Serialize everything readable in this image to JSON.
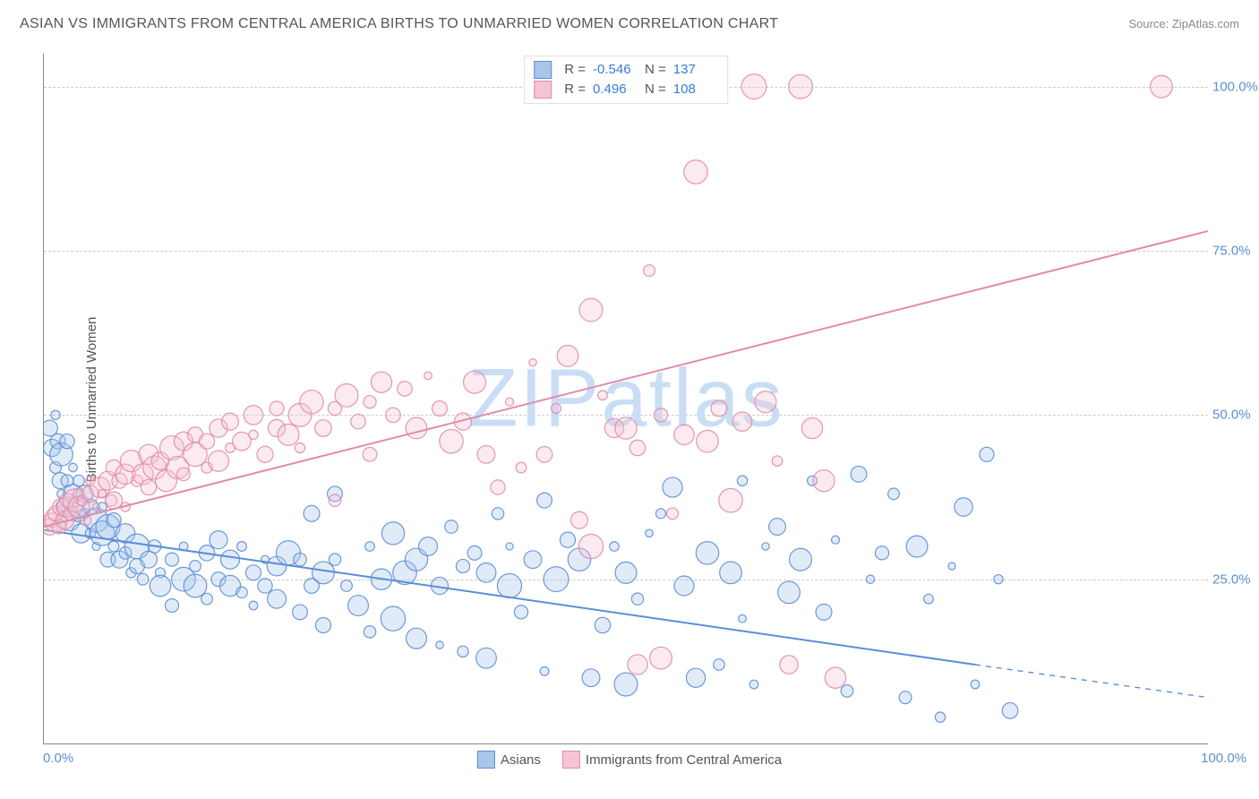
{
  "title": "ASIAN VS IMMIGRANTS FROM CENTRAL AMERICA BIRTHS TO UNMARRIED WOMEN CORRELATION CHART",
  "source": "Source: ZipAtlas.com",
  "watermark": "ZIPatlas",
  "watermark_color": "#c9def5",
  "y_axis_label": "Births to Unmarried Women",
  "chart": {
    "type": "scatter",
    "background_color": "#ffffff",
    "grid_color": "#cccccc",
    "axis_color": "#888888",
    "xlim": [
      0,
      100
    ],
    "ylim": [
      0,
      105
    ],
    "x_ticks": [
      {
        "value": 0,
        "label": "0.0%"
      },
      {
        "value": 100,
        "label": "100.0%"
      }
    ],
    "y_ticks": [
      {
        "value": 25,
        "label": "25.0%"
      },
      {
        "value": 50,
        "label": "50.0%"
      },
      {
        "value": 75,
        "label": "75.0%"
      },
      {
        "value": 100,
        "label": "100.0%"
      }
    ],
    "tick_color": "#5b8fd6",
    "marker_base_radius": 9,
    "marker_radius_variation": 5,
    "marker_fill_opacity": 0.35,
    "marker_stroke_opacity": 0.9,
    "marker_stroke_width": 1.2,
    "trend_line_width": 2,
    "series": [
      {
        "name": "Asians",
        "color": "#5b8fd6",
        "fill": "#a8c6eb",
        "R": "-0.546",
        "N": "137",
        "trend": {
          "x1": 0,
          "y1": 32.5,
          "x2": 80,
          "y2": 12,
          "extend_dashed_to_x": 100,
          "extend_dashed_to_y": 7
        },
        "points": [
          [
            0.5,
            48
          ],
          [
            0.7,
            45
          ],
          [
            1,
            50
          ],
          [
            1,
            42
          ],
          [
            1.2,
            46
          ],
          [
            1.4,
            40
          ],
          [
            1.5,
            38
          ],
          [
            1.5,
            44
          ],
          [
            1.8,
            36
          ],
          [
            2,
            46
          ],
          [
            2,
            40
          ],
          [
            2.2,
            34
          ],
          [
            2.5,
            38
          ],
          [
            2.5,
            42
          ],
          [
            3,
            35
          ],
          [
            3,
            40
          ],
          [
            3.2,
            32
          ],
          [
            3.5,
            35
          ],
          [
            3.5,
            38
          ],
          [
            4,
            36
          ],
          [
            4,
            32
          ],
          [
            4.5,
            30
          ],
          [
            4.5,
            34
          ],
          [
            5,
            32
          ],
          [
            5,
            36
          ],
          [
            5.5,
            28
          ],
          [
            5.5,
            33
          ],
          [
            6,
            30
          ],
          [
            6,
            34
          ],
          [
            6.5,
            28
          ],
          [
            7,
            32
          ],
          [
            7,
            29
          ],
          [
            7.5,
            26
          ],
          [
            8,
            30
          ],
          [
            8,
            27
          ],
          [
            8.5,
            25
          ],
          [
            9,
            28
          ],
          [
            9.5,
            30
          ],
          [
            10,
            26
          ],
          [
            10,
            24
          ],
          [
            11,
            28
          ],
          [
            11,
            21
          ],
          [
            12,
            30
          ],
          [
            12,
            25
          ],
          [
            13,
            27
          ],
          [
            13,
            24
          ],
          [
            14,
            29
          ],
          [
            14,
            22
          ],
          [
            15,
            31
          ],
          [
            15,
            25
          ],
          [
            16,
            24
          ],
          [
            16,
            28
          ],
          [
            17,
            30
          ],
          [
            17,
            23
          ],
          [
            18,
            26
          ],
          [
            18,
            21
          ],
          [
            19,
            28
          ],
          [
            19,
            24
          ],
          [
            20,
            27
          ],
          [
            20,
            22
          ],
          [
            21,
            29
          ],
          [
            22,
            28
          ],
          [
            22,
            20
          ],
          [
            23,
            35
          ],
          [
            23,
            24
          ],
          [
            24,
            26
          ],
          [
            24,
            18
          ],
          [
            25,
            38
          ],
          [
            25,
            28
          ],
          [
            26,
            24
          ],
          [
            27,
            21
          ],
          [
            28,
            30
          ],
          [
            28,
            17
          ],
          [
            29,
            25
          ],
          [
            30,
            32
          ],
          [
            30,
            19
          ],
          [
            31,
            26
          ],
          [
            32,
            28
          ],
          [
            32,
            16
          ],
          [
            33,
            30
          ],
          [
            34,
            24
          ],
          [
            34,
            15
          ],
          [
            35,
            33
          ],
          [
            36,
            27
          ],
          [
            36,
            14
          ],
          [
            37,
            29
          ],
          [
            38,
            26
          ],
          [
            38,
            13
          ],
          [
            39,
            35
          ],
          [
            40,
            24
          ],
          [
            40,
            30
          ],
          [
            41,
            20
          ],
          [
            42,
            28
          ],
          [
            43,
            37
          ],
          [
            43,
            11
          ],
          [
            44,
            25
          ],
          [
            45,
            31
          ],
          [
            46,
            28
          ],
          [
            47,
            10
          ],
          [
            48,
            18
          ],
          [
            49,
            30
          ],
          [
            50,
            26
          ],
          [
            50,
            9
          ],
          [
            51,
            22
          ],
          [
            52,
            32
          ],
          [
            53,
            35
          ],
          [
            54,
            39
          ],
          [
            55,
            24
          ],
          [
            56,
            10
          ],
          [
            57,
            29
          ],
          [
            58,
            12
          ],
          [
            59,
            26
          ],
          [
            60,
            40
          ],
          [
            60,
            19
          ],
          [
            61,
            9
          ],
          [
            62,
            30
          ],
          [
            63,
            33
          ],
          [
            64,
            23
          ],
          [
            65,
            28
          ],
          [
            66,
            40
          ],
          [
            67,
            20
          ],
          [
            68,
            31
          ],
          [
            69,
            8
          ],
          [
            70,
            41
          ],
          [
            71,
            25
          ],
          [
            72,
            29
          ],
          [
            73,
            38
          ],
          [
            74,
            7
          ],
          [
            75,
            30
          ],
          [
            76,
            22
          ],
          [
            77,
            4
          ],
          [
            78,
            27
          ],
          [
            79,
            36
          ],
          [
            80,
            9
          ],
          [
            81,
            44
          ],
          [
            82,
            25
          ],
          [
            83,
            5
          ]
        ]
      },
      {
        "name": "Immigrants from Central America",
        "color": "#e08ca8",
        "fill": "#f4c4d4",
        "R": "0.496",
        "N": "108",
        "trend": {
          "x1": 0,
          "y1": 33,
          "x2": 100,
          "y2": 78
        },
        "points": [
          [
            0.5,
            33
          ],
          [
            0.7,
            34
          ],
          [
            1,
            34
          ],
          [
            1,
            35
          ],
          [
            1.3,
            33
          ],
          [
            1.5,
            36
          ],
          [
            1.8,
            34
          ],
          [
            2,
            36
          ],
          [
            2,
            37
          ],
          [
            2.3,
            35
          ],
          [
            2.6,
            37
          ],
          [
            3,
            36
          ],
          [
            3,
            38
          ],
          [
            3.3,
            37
          ],
          [
            3.6,
            34
          ],
          [
            4,
            38
          ],
          [
            4,
            40
          ],
          [
            4.5,
            36
          ],
          [
            4.8,
            39
          ],
          [
            5,
            38
          ],
          [
            5.5,
            40
          ],
          [
            5.8,
            37
          ],
          [
            6,
            42
          ],
          [
            6,
            37
          ],
          [
            6.5,
            40
          ],
          [
            7,
            41
          ],
          [
            7,
            36
          ],
          [
            7.5,
            43
          ],
          [
            8,
            40
          ],
          [
            8.5,
            41
          ],
          [
            9,
            44
          ],
          [
            9,
            39
          ],
          [
            9.5,
            42
          ],
          [
            10,
            43
          ],
          [
            10.5,
            40
          ],
          [
            11,
            45
          ],
          [
            11.5,
            42
          ],
          [
            12,
            46
          ],
          [
            12,
            41
          ],
          [
            13,
            44
          ],
          [
            13,
            47
          ],
          [
            14,
            46
          ],
          [
            14,
            42
          ],
          [
            15,
            48
          ],
          [
            15,
            43
          ],
          [
            16,
            45
          ],
          [
            16,
            49
          ],
          [
            17,
            46
          ],
          [
            18,
            47
          ],
          [
            18,
            50
          ],
          [
            19,
            44
          ],
          [
            20,
            48
          ],
          [
            20,
            51
          ],
          [
            21,
            47
          ],
          [
            22,
            50
          ],
          [
            22,
            45
          ],
          [
            23,
            52
          ],
          [
            24,
            48
          ],
          [
            25,
            51
          ],
          [
            25,
            37
          ],
          [
            26,
            53
          ],
          [
            27,
            49
          ],
          [
            28,
            52
          ],
          [
            28,
            44
          ],
          [
            29,
            55
          ],
          [
            30,
            50
          ],
          [
            31,
            54
          ],
          [
            32,
            48
          ],
          [
            33,
            56
          ],
          [
            34,
            51
          ],
          [
            35,
            46
          ],
          [
            36,
            49
          ],
          [
            37,
            55
          ],
          [
            38,
            44
          ],
          [
            39,
            39
          ],
          [
            40,
            52
          ],
          [
            41,
            42
          ],
          [
            42,
            58
          ],
          [
            43,
            44
          ],
          [
            44,
            51
          ],
          [
            45,
            59
          ],
          [
            46,
            34
          ],
          [
            47,
            66
          ],
          [
            48,
            53
          ],
          [
            49,
            48
          ],
          [
            50,
            48
          ],
          [
            51,
            45
          ],
          [
            52,
            72
          ],
          [
            53,
            50
          ],
          [
            54,
            35
          ],
          [
            55,
            47
          ],
          [
            56,
            87
          ],
          [
            57,
            46
          ],
          [
            58,
            51
          ],
          [
            59,
            37
          ],
          [
            60,
            49
          ],
          [
            61,
            100
          ],
          [
            62,
            52
          ],
          [
            63,
            43
          ],
          [
            64,
            12
          ],
          [
            65,
            100
          ],
          [
            66,
            48
          ],
          [
            67,
            40
          ],
          [
            68,
            10
          ],
          [
            96,
            100
          ],
          [
            47,
            30
          ],
          [
            51,
            12
          ],
          [
            53,
            13
          ]
        ]
      }
    ]
  },
  "stat_value_color": "#3a7ad6"
}
